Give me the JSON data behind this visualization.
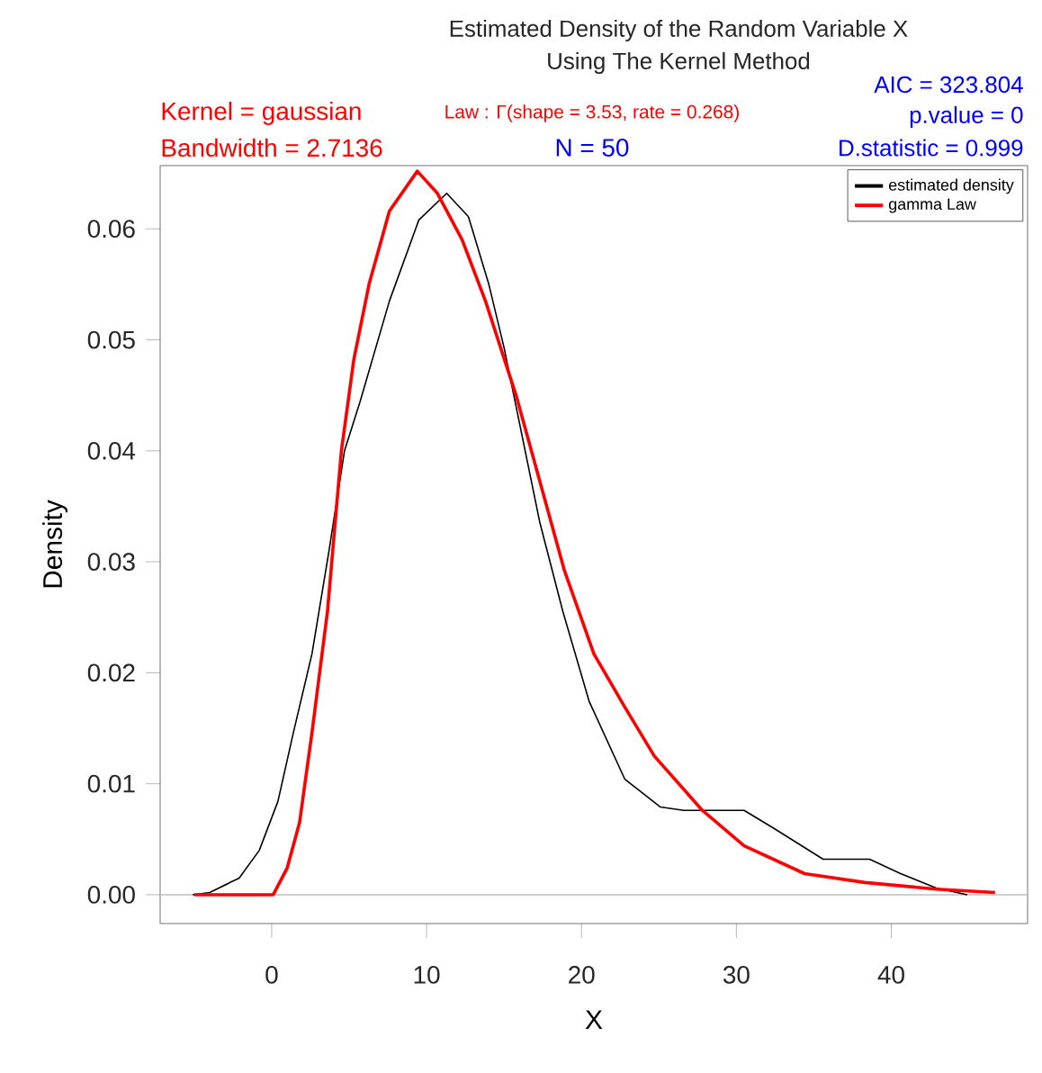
{
  "chart_data": {
    "type": "line",
    "title": "Estimated Density of the Random Variable X",
    "subtitle": "Using The Kernel Method",
    "xlabel": "X",
    "ylabel": "Density",
    "annotations": [
      "Kernel = gaussian",
      "Bandwidth = 2.7136",
      "Law : Γ(shape = 3.53, rate = 0.268)",
      "N = 50",
      "AIC = 323.804",
      "p.value = 0",
      "D.statistic = 0.999"
    ],
    "xlim": [
      -7.2,
      48.8
    ],
    "ylim": [
      -0.0026,
      0.0657
    ],
    "xticks": [
      0,
      10,
      20,
      30,
      40
    ],
    "yticks": [
      {
        "value": 0,
        "label": "0.00"
      },
      {
        "value": 0.01,
        "label": "0.01"
      },
      {
        "value": 0.02,
        "label": "0.02"
      },
      {
        "value": 0.03,
        "label": "0.03"
      },
      {
        "value": 0.04,
        "label": "0.04"
      },
      {
        "value": 0.05,
        "label": "0.05"
      },
      {
        "value": 0.06,
        "label": "0.06"
      }
    ],
    "ref_lines": [
      {
        "axis": "y",
        "value": 0,
        "color": "#bebebe"
      }
    ],
    "legend": "top right",
    "grid": false,
    "marker": "none",
    "line_style": "solid",
    "series": [
      {
        "name": "estimated density",
        "color": "#000000",
        "x": [
          -5.1,
          -4.0,
          -2.1,
          -0.8,
          0.4,
          1.4,
          2.6,
          3.7,
          4.7,
          5.7,
          7.6,
          9.5,
          11.3,
          12.7,
          14.0,
          15.0,
          17.3,
          18.8,
          20.5,
          22.8,
          25.1,
          26.6,
          30.5,
          32.4,
          35.6,
          38.6,
          40.6,
          42.9,
          44.9
        ],
        "values": [
          0.0,
          0.0002,
          0.0015,
          0.004,
          0.0084,
          0.0146,
          0.0217,
          0.031,
          0.04,
          0.0444,
          0.0535,
          0.0608,
          0.0632,
          0.0611,
          0.0551,
          0.0493,
          0.0336,
          0.0255,
          0.0174,
          0.0104,
          0.0079,
          0.0076,
          0.0076,
          0.006,
          0.0032,
          0.0032,
          0.0019,
          0.0006,
          0.0
        ]
      },
      {
        "name": "gamma Law",
        "color": "#ff0000",
        "x": [
          -5.0,
          0.1,
          1.0,
          1.8,
          2.6,
          3.6,
          4.5,
          5.3,
          6.3,
          7.6,
          9.4,
          10.7,
          12.3,
          13.8,
          15.8,
          17.3,
          18.9,
          20.8,
          22.8,
          24.7,
          27.8,
          30.5,
          34.4,
          38.3,
          42.9,
          46.7
        ],
        "values": [
          0.0,
          0.0,
          0.0024,
          0.0065,
          0.0146,
          0.0255,
          0.04,
          0.0482,
          0.0551,
          0.0616,
          0.0652,
          0.0632,
          0.059,
          0.0535,
          0.0449,
          0.0373,
          0.0292,
          0.0217,
          0.0169,
          0.0125,
          0.0076,
          0.0044,
          0.0019,
          0.0011,
          0.0005,
          0.0002
        ]
      }
    ]
  }
}
